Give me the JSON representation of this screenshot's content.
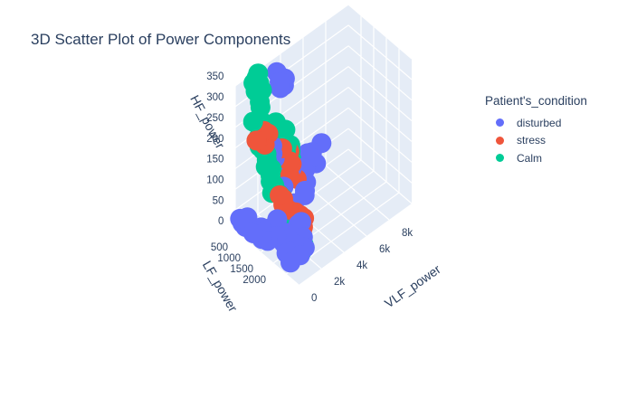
{
  "chart_data": {
    "type": "scatter",
    "title": "3D Scatter Plot of Power Components",
    "legend_title": "Patient's_condition",
    "legend_placement": "top-right",
    "axes": {
      "y": {
        "label": "HF_power",
        "ticks": [
          "0",
          "50",
          "100",
          "150",
          "200",
          "250",
          "300",
          "350"
        ],
        "range": [
          0,
          350
        ]
      },
      "x": {
        "label": "LF_power",
        "ticks": [
          "500",
          "1000",
          "1500",
          "2000"
        ],
        "range": [
          0,
          2500
        ]
      },
      "z": {
        "label": "VLF_power",
        "ticks": [
          "0",
          "2k",
          "4k",
          "6k",
          "8k"
        ],
        "range": [
          0,
          10000
        ]
      }
    },
    "grid": true,
    "series": [
      {
        "name": "disturbed",
        "color": "#636efa",
        "points": [
          [
            100,
            30,
            200
          ],
          [
            150,
            20,
            300
          ],
          [
            300,
            40,
            400
          ],
          [
            250,
            15,
            350
          ],
          [
            600,
            20,
            250
          ],
          [
            700,
            30,
            300
          ],
          [
            900,
            20,
            350
          ],
          [
            1100,
            25,
            400
          ],
          [
            800,
            40,
            500
          ],
          [
            400,
            25,
            300
          ],
          [
            1200,
            60,
            600
          ],
          [
            1400,
            50,
            500
          ],
          [
            1600,
            40,
            700
          ],
          [
            1800,
            30,
            500
          ],
          [
            2000,
            20,
            400
          ],
          [
            1300,
            80,
            800
          ],
          [
            2200,
            40,
            800
          ],
          [
            2300,
            60,
            1000
          ],
          [
            1900,
            50,
            900
          ],
          [
            1700,
            70,
            700
          ],
          [
            500,
            100,
            3500
          ],
          [
            600,
            110,
            3000
          ],
          [
            800,
            130,
            3200
          ],
          [
            700,
            90,
            2700
          ],
          [
            900,
            120,
            4000
          ],
          [
            1000,
            140,
            4500
          ],
          [
            1100,
            100,
            3800
          ],
          [
            1200,
            80,
            2500
          ],
          [
            1400,
            100,
            3000
          ],
          [
            1500,
            120,
            2800
          ],
          [
            300,
            80,
            5000
          ],
          [
            400,
            100,
            5500
          ],
          [
            350,
            90,
            6000
          ],
          [
            450,
            70,
            5200
          ],
          [
            500,
            110,
            6500
          ],
          [
            250,
            60,
            4800
          ],
          [
            600,
            80,
            5800
          ],
          [
            1600,
            60,
            2000
          ],
          [
            1800,
            80,
            1800
          ],
          [
            2000,
            60,
            1500
          ],
          [
            300,
            340,
            3000
          ],
          [
            400,
            320,
            3500
          ],
          [
            350,
            300,
            3200
          ],
          [
            500,
            330,
            2800
          ],
          [
            450,
            310,
            3300
          ],
          [
            200,
            150,
            2500
          ],
          [
            300,
            170,
            2600
          ],
          [
            250,
            130,
            3000
          ],
          [
            400,
            160,
            2400
          ],
          [
            350,
            140,
            2700
          ]
        ]
      },
      {
        "name": "stress",
        "color": "#ef553b",
        "points": [
          [
            700,
            150,
            3000
          ],
          [
            800,
            140,
            3200
          ],
          [
            900,
            160,
            2800
          ],
          [
            600,
            130,
            3400
          ],
          [
            750,
            170,
            3100
          ],
          [
            850,
            120,
            2900
          ],
          [
            950,
            110,
            3300
          ],
          [
            650,
            180,
            2700
          ],
          [
            1300,
            50,
            2500
          ],
          [
            1400,
            60,
            2600
          ],
          [
            1500,
            40,
            2400
          ],
          [
            1350,
            70,
            2300
          ],
          [
            1450,
            30,
            2700
          ],
          [
            1550,
            55,
            2200
          ],
          [
            1250,
            45,
            2800
          ],
          [
            1600,
            65,
            2500
          ],
          [
            1200,
            35,
            2400
          ],
          [
            1650,
            50,
            2300
          ],
          [
            1100,
            60,
            2600
          ],
          [
            1700,
            40,
            2100
          ],
          [
            400,
            220,
            1500
          ],
          [
            500,
            240,
            1400
          ],
          [
            450,
            200,
            1600
          ],
          [
            300,
            210,
            1200
          ],
          [
            550,
            230,
            1700
          ],
          [
            1000,
            90,
            2000
          ],
          [
            1050,
            80,
            1900
          ],
          [
            1150,
            70,
            2100
          ],
          [
            950,
            100,
            1800
          ],
          [
            1250,
            20,
            2000
          ]
        ]
      },
      {
        "name": "Calm",
        "color": "#00cc96",
        "points": [
          [
            50,
            330,
            1500
          ],
          [
            80,
            340,
            1700
          ],
          [
            60,
            320,
            2000
          ],
          [
            100,
            350,
            1800
          ],
          [
            70,
            300,
            2200
          ],
          [
            90,
            310,
            1600
          ],
          [
            120,
            280,
            1900
          ],
          [
            60,
            260,
            2100
          ],
          [
            80,
            240,
            1400
          ],
          [
            100,
            220,
            2300
          ],
          [
            140,
            200,
            1800
          ],
          [
            120,
            190,
            2000
          ],
          [
            200,
            180,
            1700
          ],
          [
            250,
            170,
            1900
          ],
          [
            300,
            160,
            2100
          ],
          [
            350,
            150,
            2000
          ],
          [
            400,
            140,
            1800
          ],
          [
            450,
            130,
            2200
          ],
          [
            500,
            120,
            2000
          ],
          [
            550,
            110,
            1900
          ],
          [
            600,
            100,
            2100
          ],
          [
            650,
            90,
            1800
          ],
          [
            700,
            80,
            2300
          ],
          [
            500,
            200,
            3000
          ],
          [
            550,
            210,
            3200
          ],
          [
            600,
            190,
            2800
          ],
          [
            450,
            220,
            2600
          ],
          [
            650,
            180,
            3100
          ],
          [
            700,
            170,
            2900
          ],
          [
            400,
            230,
            2700
          ],
          [
            1700,
            20,
            1500
          ],
          [
            1800,
            25,
            1600
          ],
          [
            1750,
            15,
            1400
          ],
          [
            1850,
            20,
            1700
          ],
          [
            1900,
            30,
            1800
          ],
          [
            1650,
            18,
            1300
          ],
          [
            1950,
            22,
            1500
          ],
          [
            1600,
            28,
            1200
          ],
          [
            200,
            120,
            4000
          ],
          [
            300,
            140,
            4200
          ],
          [
            250,
            100,
            4400
          ],
          [
            350,
            130,
            4100
          ],
          [
            150,
            90,
            3900
          ],
          [
            800,
            60,
            2600
          ],
          [
            900,
            50,
            2700
          ],
          [
            750,
            70,
            2500
          ],
          [
            850,
            40,
            2800
          ],
          [
            950,
            30,
            2600
          ],
          [
            1000,
            45,
            2400
          ],
          [
            1050,
            35,
            2300
          ]
        ]
      }
    ]
  }
}
